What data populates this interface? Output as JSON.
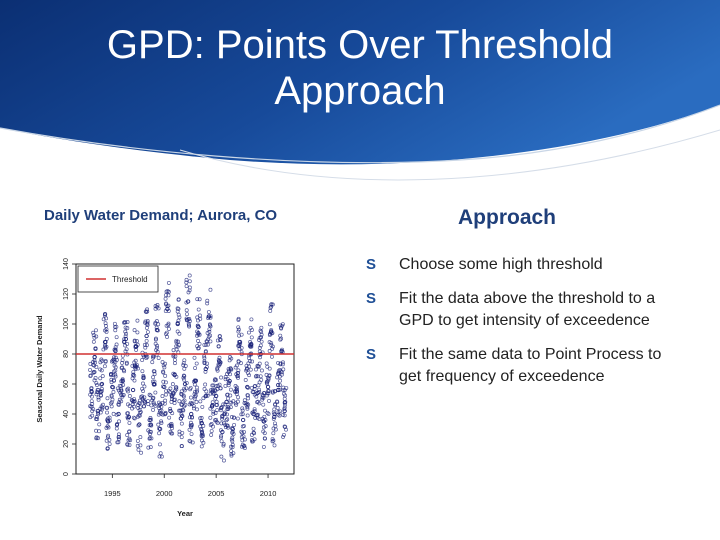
{
  "slide": {
    "title": "GPD: Points Over Threshold Approach",
    "colors": {
      "header_dark": "#0b2f73",
      "header_mid": "#1c5bb0",
      "accent": "#1f3f7a"
    }
  },
  "left": {
    "caption": "Daily Water Demand; Aurora, CO"
  },
  "right": {
    "heading": "Approach",
    "bullet_icon": "s-bullet-icon",
    "bullets": [
      "Choose some high threshold",
      "Fit the data above the threshold to a GPD to get intensity of exceedence",
      "Fit the same data to Point Process to get frequency of exceedence"
    ]
  },
  "chart_data": {
    "type": "scatter",
    "xlabel": "Year",
    "ylabel": "Seasonal Daily Water Demand",
    "x_ticks": [
      1995,
      2000,
      2005,
      2010
    ],
    "y_ticks": [
      0,
      20,
      40,
      60,
      80,
      100,
      120,
      140
    ],
    "xlim": [
      1991.5,
      2012.5
    ],
    "ylim": [
      0,
      140
    ],
    "legend": {
      "label": "Threshold",
      "position": "top-left"
    },
    "threshold": 80,
    "colors": {
      "points": "#1b237a",
      "threshold": "#d03030"
    },
    "series": [
      {
        "x": [
          1993,
          1993.3,
          1993.6,
          1994,
          1994.3,
          1994.6,
          1995,
          1995.3,
          1995.6,
          1996,
          1996.3,
          1996.6,
          1997,
          1997.3,
          1997.6,
          1998,
          1998.3,
          1998.6,
          1999,
          1999.3,
          1999.6,
          2000,
          2000.3,
          2000.6,
          2001,
          2001.3,
          2001.6,
          2002,
          2002.3,
          2002.6,
          2003,
          2003.3,
          2003.6,
          2004,
          2004.3,
          2004.6,
          2005,
          2005.3,
          2005.6,
          2006,
          2006.3,
          2006.6,
          2007,
          2007.3,
          2007.6,
          2008,
          2008.3,
          2008.6,
          2009,
          2009.3,
          2009.6,
          2010,
          2010.3,
          2010.6,
          2011,
          2011.3,
          2011.6
        ],
        "y": [
          55,
          78,
          42,
          60,
          88,
          35,
          58,
          82,
          40,
          62,
          90,
          38,
          56,
          85,
          33,
          64,
          92,
          36,
          60,
          96,
          30,
          58,
          110,
          42,
          66,
          100,
          37,
          60,
          115,
          40,
          62,
          98,
          34,
          70,
          105,
          45,
          52,
          75,
          28,
          48,
          62,
          30,
          55,
          88,
          36,
          58,
          85,
          40,
          54,
          80,
          35,
          58,
          95,
          38,
          56,
          82,
          42
        ]
      }
    ]
  }
}
